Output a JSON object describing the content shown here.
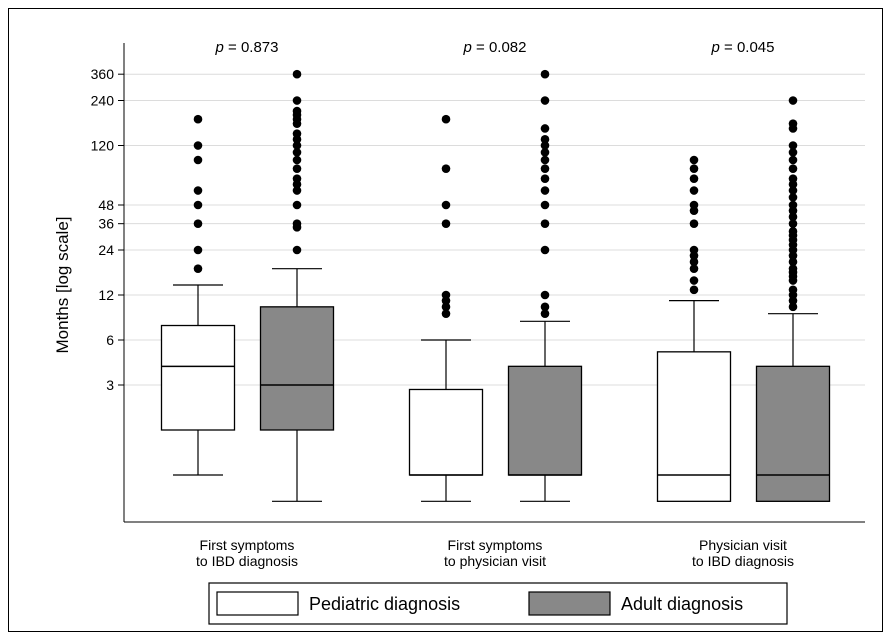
{
  "chart_data": {
    "type": "box",
    "ylabel": "Months [log scale]",
    "yscale": "log",
    "yticks": [
      3,
      6,
      12,
      24,
      36,
      48,
      120,
      240,
      360
    ],
    "ytick_labels": [
      "3",
      "6",
      "12",
      "24",
      "36",
      "48",
      "120",
      "240",
      "360"
    ],
    "ylim": [
      0.3,
      480
    ],
    "grid": true,
    "groups": [
      {
        "label_lines": [
          "First symptoms",
          "to IBD diagnosis"
        ],
        "p_label": "p = 0.873",
        "p_prefix": "p",
        "p_rest": " = 0.873",
        "boxes": [
          {
            "series": "Pediatric diagnosis",
            "whisker_low": 0.75,
            "q1": 1.5,
            "median": 4.0,
            "q3": 7.5,
            "whisker_high": 14,
            "outliers": [
              18,
              24,
              36,
              48,
              60,
              96,
              120,
              180
            ]
          },
          {
            "series": "Adult diagnosis",
            "whisker_low": 0.5,
            "q1": 1.5,
            "median": 3.0,
            "q3": 10,
            "whisker_high": 18,
            "outliers": [
              24,
              34,
              36,
              48,
              60,
              66,
              72,
              84,
              96,
              108,
              120,
              132,
              144,
              168,
              180,
              192,
              204,
              240,
              360
            ]
          }
        ]
      },
      {
        "label_lines": [
          "First symptoms",
          "to physician visit"
        ],
        "p_label": "p = 0.082",
        "p_prefix": "p",
        "p_rest": " = 0.082",
        "boxes": [
          {
            "series": "Pediatric diagnosis",
            "whisker_low": 0.5,
            "q1": 0.75,
            "median": 0.75,
            "q3": 2.8,
            "whisker_high": 6,
            "outliers": [
              9,
              10,
              11,
              12,
              36,
              48,
              84,
              180
            ]
          },
          {
            "series": "Adult diagnosis",
            "whisker_low": 0.5,
            "q1": 0.75,
            "median": 0.75,
            "q3": 4.0,
            "whisker_high": 8,
            "outliers": [
              9,
              10,
              12,
              24,
              36,
              48,
              60,
              72,
              84,
              96,
              108,
              120,
              132,
              156,
              240,
              360
            ]
          }
        ]
      },
      {
        "label_lines": [
          "Physician visit",
          "to IBD diagnosis"
        ],
        "p_label": "p = 0.045",
        "p_prefix": "p",
        "p_rest": " = 0.045",
        "boxes": [
          {
            "series": "Pediatric diagnosis",
            "whisker_low": 0.5,
            "q1": 0.5,
            "median": 0.75,
            "q3": 5.0,
            "whisker_high": 11,
            "outliers": [
              13,
              15,
              18,
              20,
              22,
              24,
              36,
              44,
              48,
              60,
              72,
              84,
              96
            ]
          },
          {
            "series": "Adult diagnosis",
            "whisker_low": 0.5,
            "q1": 0.5,
            "median": 0.75,
            "q3": 4.0,
            "whisker_high": 9,
            "outliers": [
              10,
              11,
              12,
              13,
              15,
              16,
              17,
              18,
              20,
              22,
              24,
              26,
              28,
              30,
              32,
              36,
              40,
              44,
              48,
              54,
              60,
              66,
              72,
              84,
              96,
              108,
              120,
              156,
              168,
              240
            ]
          }
        ]
      }
    ],
    "legend": {
      "placement": "bottom",
      "entries": [
        {
          "name": "Pediatric diagnosis",
          "color": "#ffffff"
        },
        {
          "name": "Adult diagnosis",
          "color": "#888888"
        }
      ]
    },
    "colors": {
      "pediatric": "#ffffff",
      "adult": "#888888",
      "outlier": "#000000",
      "grid": "#dcdcdc"
    }
  }
}
